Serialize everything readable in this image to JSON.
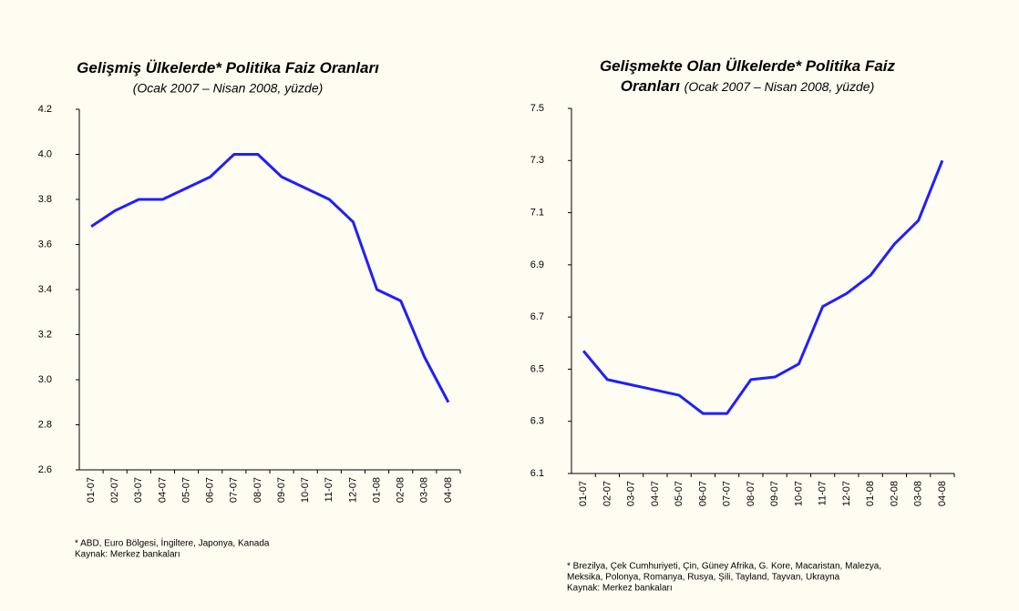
{
  "chart_data": [
    {
      "type": "line",
      "title": [
        "Gelişmiş Ülkelerde* Politika Faiz Oranları"
      ],
      "subtitle": "(Ocak 2007 –  Nisan 2008, yüzde)",
      "categories": [
        "01-07",
        "02-07",
        "03-07",
        "04-07",
        "05-07",
        "06-07",
        "07-07",
        "08-07",
        "09-07",
        "10-07",
        "11-07",
        "12-07",
        "01-08",
        "02-08",
        "03-08",
        "04-08"
      ],
      "values": [
        3.68,
        3.75,
        3.8,
        3.8,
        3.85,
        3.9,
        4.0,
        4.0,
        3.9,
        3.85,
        3.8,
        3.7,
        3.4,
        3.35,
        3.1,
        2.9
      ],
      "color": "#1f1fff",
      "ylim": [
        2.6,
        4.2
      ],
      "yticks": [
        2.6,
        2.8,
        {
          "value": 3.0,
          "label": "3.0"
        },
        3.2,
        3.4,
        3.6,
        3.8,
        {
          "value": 4.0,
          "label": "4.0"
        },
        4.2
      ],
      "notes": [
        "* ABD, Euro Bölgesi, İngiltere, Japonya, Kanada",
        "Kaynak: Merkez bankaları"
      ]
    },
    {
      "type": "line",
      "title": [
        "Gelişmekte Olan Ülkelerde* Politika Faiz",
        "Oranları"
      ],
      "subtitle": "(Ocak 2007 –  Nisan 2008, yüzde)",
      "categories": [
        "01-07",
        "02-07",
        "03-07",
        "04-07",
        "05-07",
        "06-07",
        "07-07",
        "08-07",
        "09-07",
        "10-07",
        "11-07",
        "12-07",
        "01-08",
        "02-08",
        "03-08",
        "04-08"
      ],
      "values": [
        6.57,
        6.46,
        6.44,
        6.42,
        6.4,
        6.33,
        6.33,
        6.46,
        6.47,
        6.52,
        6.74,
        6.79,
        6.86,
        6.98,
        7.07,
        7.3
      ],
      "color": "#1f1fff",
      "ylim": [
        6.1,
        7.5
      ],
      "yticks": [
        6.1,
        6.3,
        6.5,
        6.7,
        6.9,
        7.1,
        7.3,
        7.5
      ],
      "notes": [
        "* Brezilya, Çek Cumhuriyeti, Çin, Güney Afrika, G. Kore, Macaristan, Malezya,",
        "Meksika, Polonya, Romanya, Rusya, Şili, Tayland, Tayvan, Ukrayna",
        "Kaynak: Merkez bankaları"
      ]
    }
  ]
}
